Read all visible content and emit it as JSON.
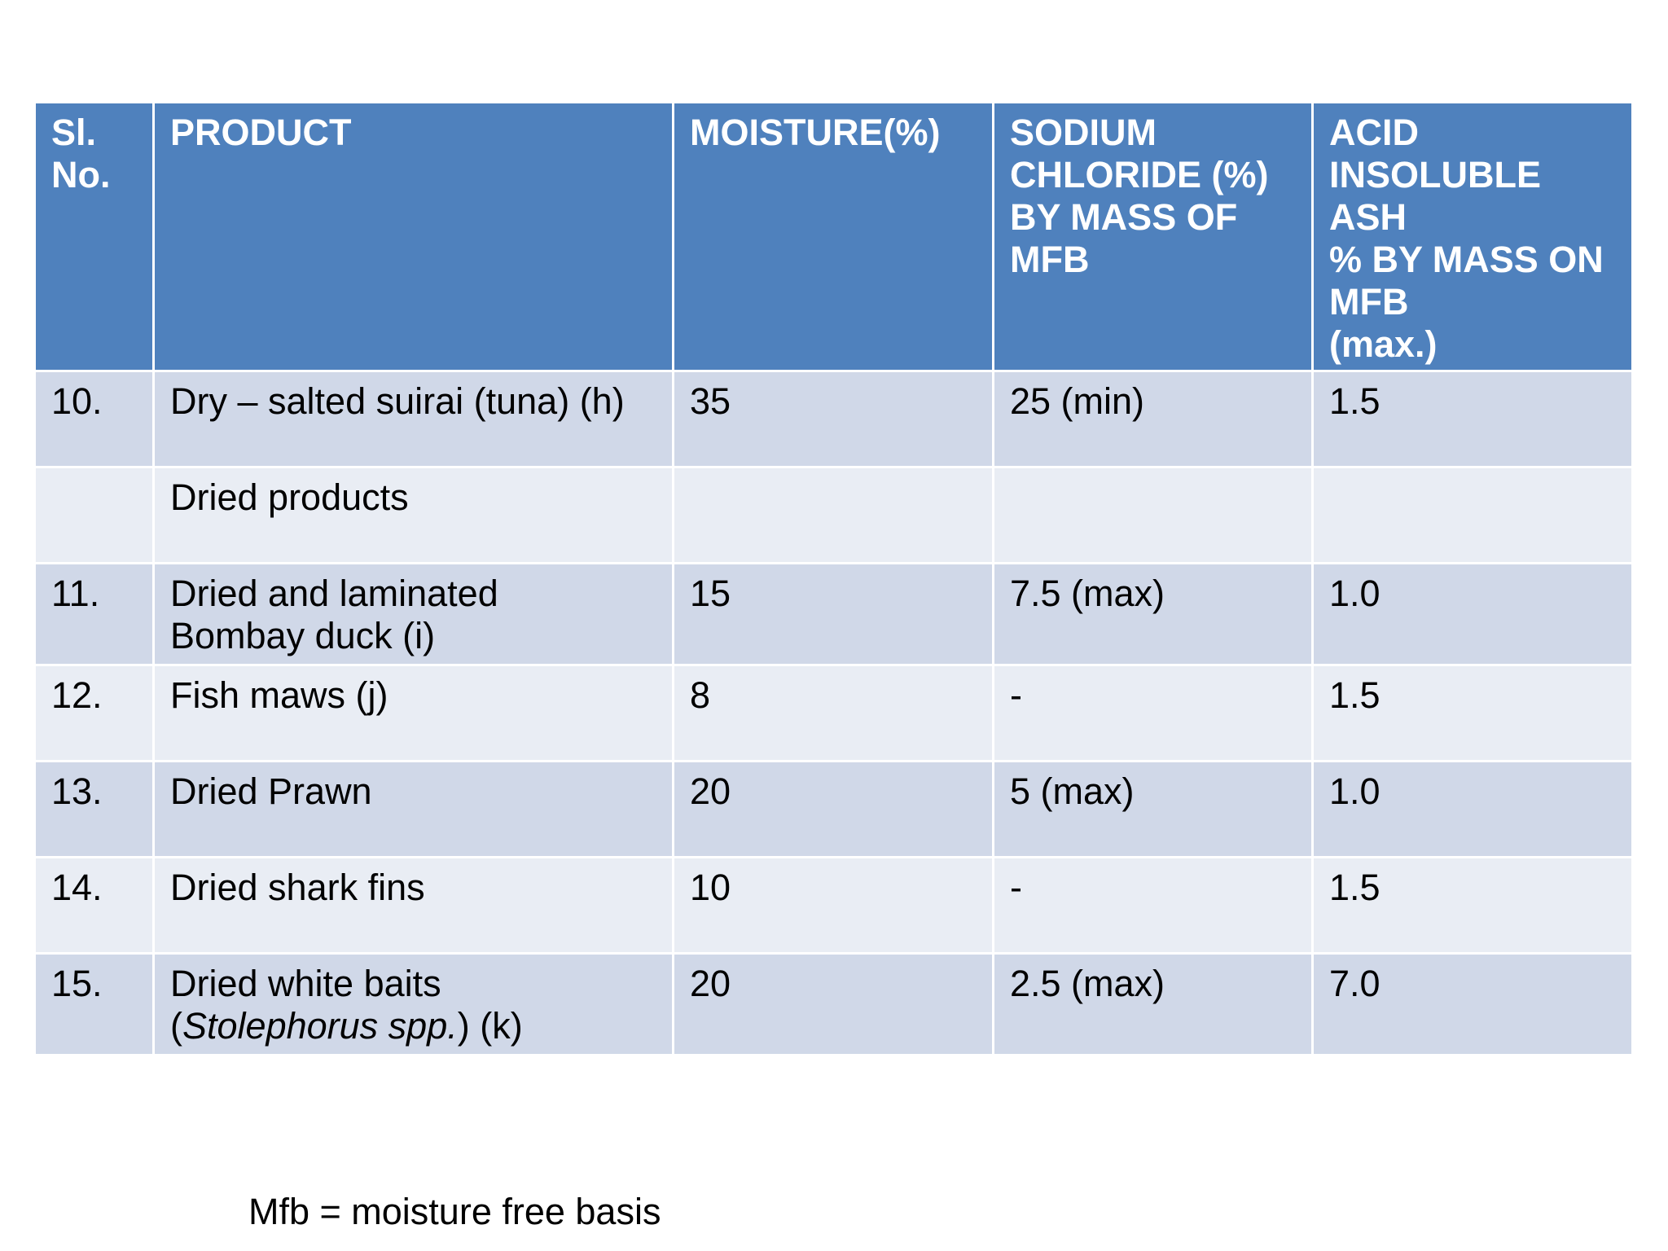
{
  "table": {
    "headers": {
      "sl_no": [
        "Sl.",
        "No."
      ],
      "product": "PRODUCT",
      "moisture": "MOISTURE(%)",
      "sodium_chloride": [
        "SODIUM",
        "CHLORIDE (%)",
        "BY MASS OF",
        "MFB"
      ],
      "acid_insoluble_ash": [
        "ACID",
        "INSOLUBLE ASH",
        "% BY MASS ON",
        "MFB",
        "(max.)"
      ]
    },
    "rows": [
      {
        "sl": "10.",
        "product": [
          "Dry – salted suirai (tuna) (h)"
        ],
        "moisture": "35",
        "sodium_chloride": "25 (min)",
        "ash": "1.5"
      },
      {
        "sl": "",
        "product": [
          "Dried products"
        ],
        "moisture": "",
        "sodium_chloride": "",
        "ash": ""
      },
      {
        "sl": "11.",
        "product": [
          "Dried and laminated",
          "Bombay duck (i)"
        ],
        "moisture": "15",
        "sodium_chloride": "7.5 (max)",
        "ash": "1.0"
      },
      {
        "sl": "12.",
        "product": [
          "Fish maws (j)"
        ],
        "moisture": "8",
        "sodium_chloride": "-",
        "ash": "1.5"
      },
      {
        "sl": "13.",
        "product": [
          "Dried Prawn"
        ],
        "moisture": "20",
        "sodium_chloride": "5 (max)",
        "ash": "1.0"
      },
      {
        "sl": "14.",
        "product": [
          "Dried shark fins"
        ],
        "moisture": "10",
        "sodium_chloride": "-",
        "ash": "1.5"
      },
      {
        "sl": "15.",
        "product": [
          "Dried white baits",
          "(Stolephorus spp.) (k)"
        ],
        "moisture": "20",
        "sodium_chloride": "2.5 (max)",
        "ash": "7.0"
      }
    ],
    "last_row_italic_part": "Stolephorus spp.",
    "last_row_prefix": "(",
    "last_row_suffix": ") (k)"
  },
  "footnote": "Mfb = moisture free basis",
  "colors": {
    "header_bg": "#4f81bd",
    "row_odd_bg": "#d0d8e8",
    "row_even_bg": "#e9edf4"
  }
}
